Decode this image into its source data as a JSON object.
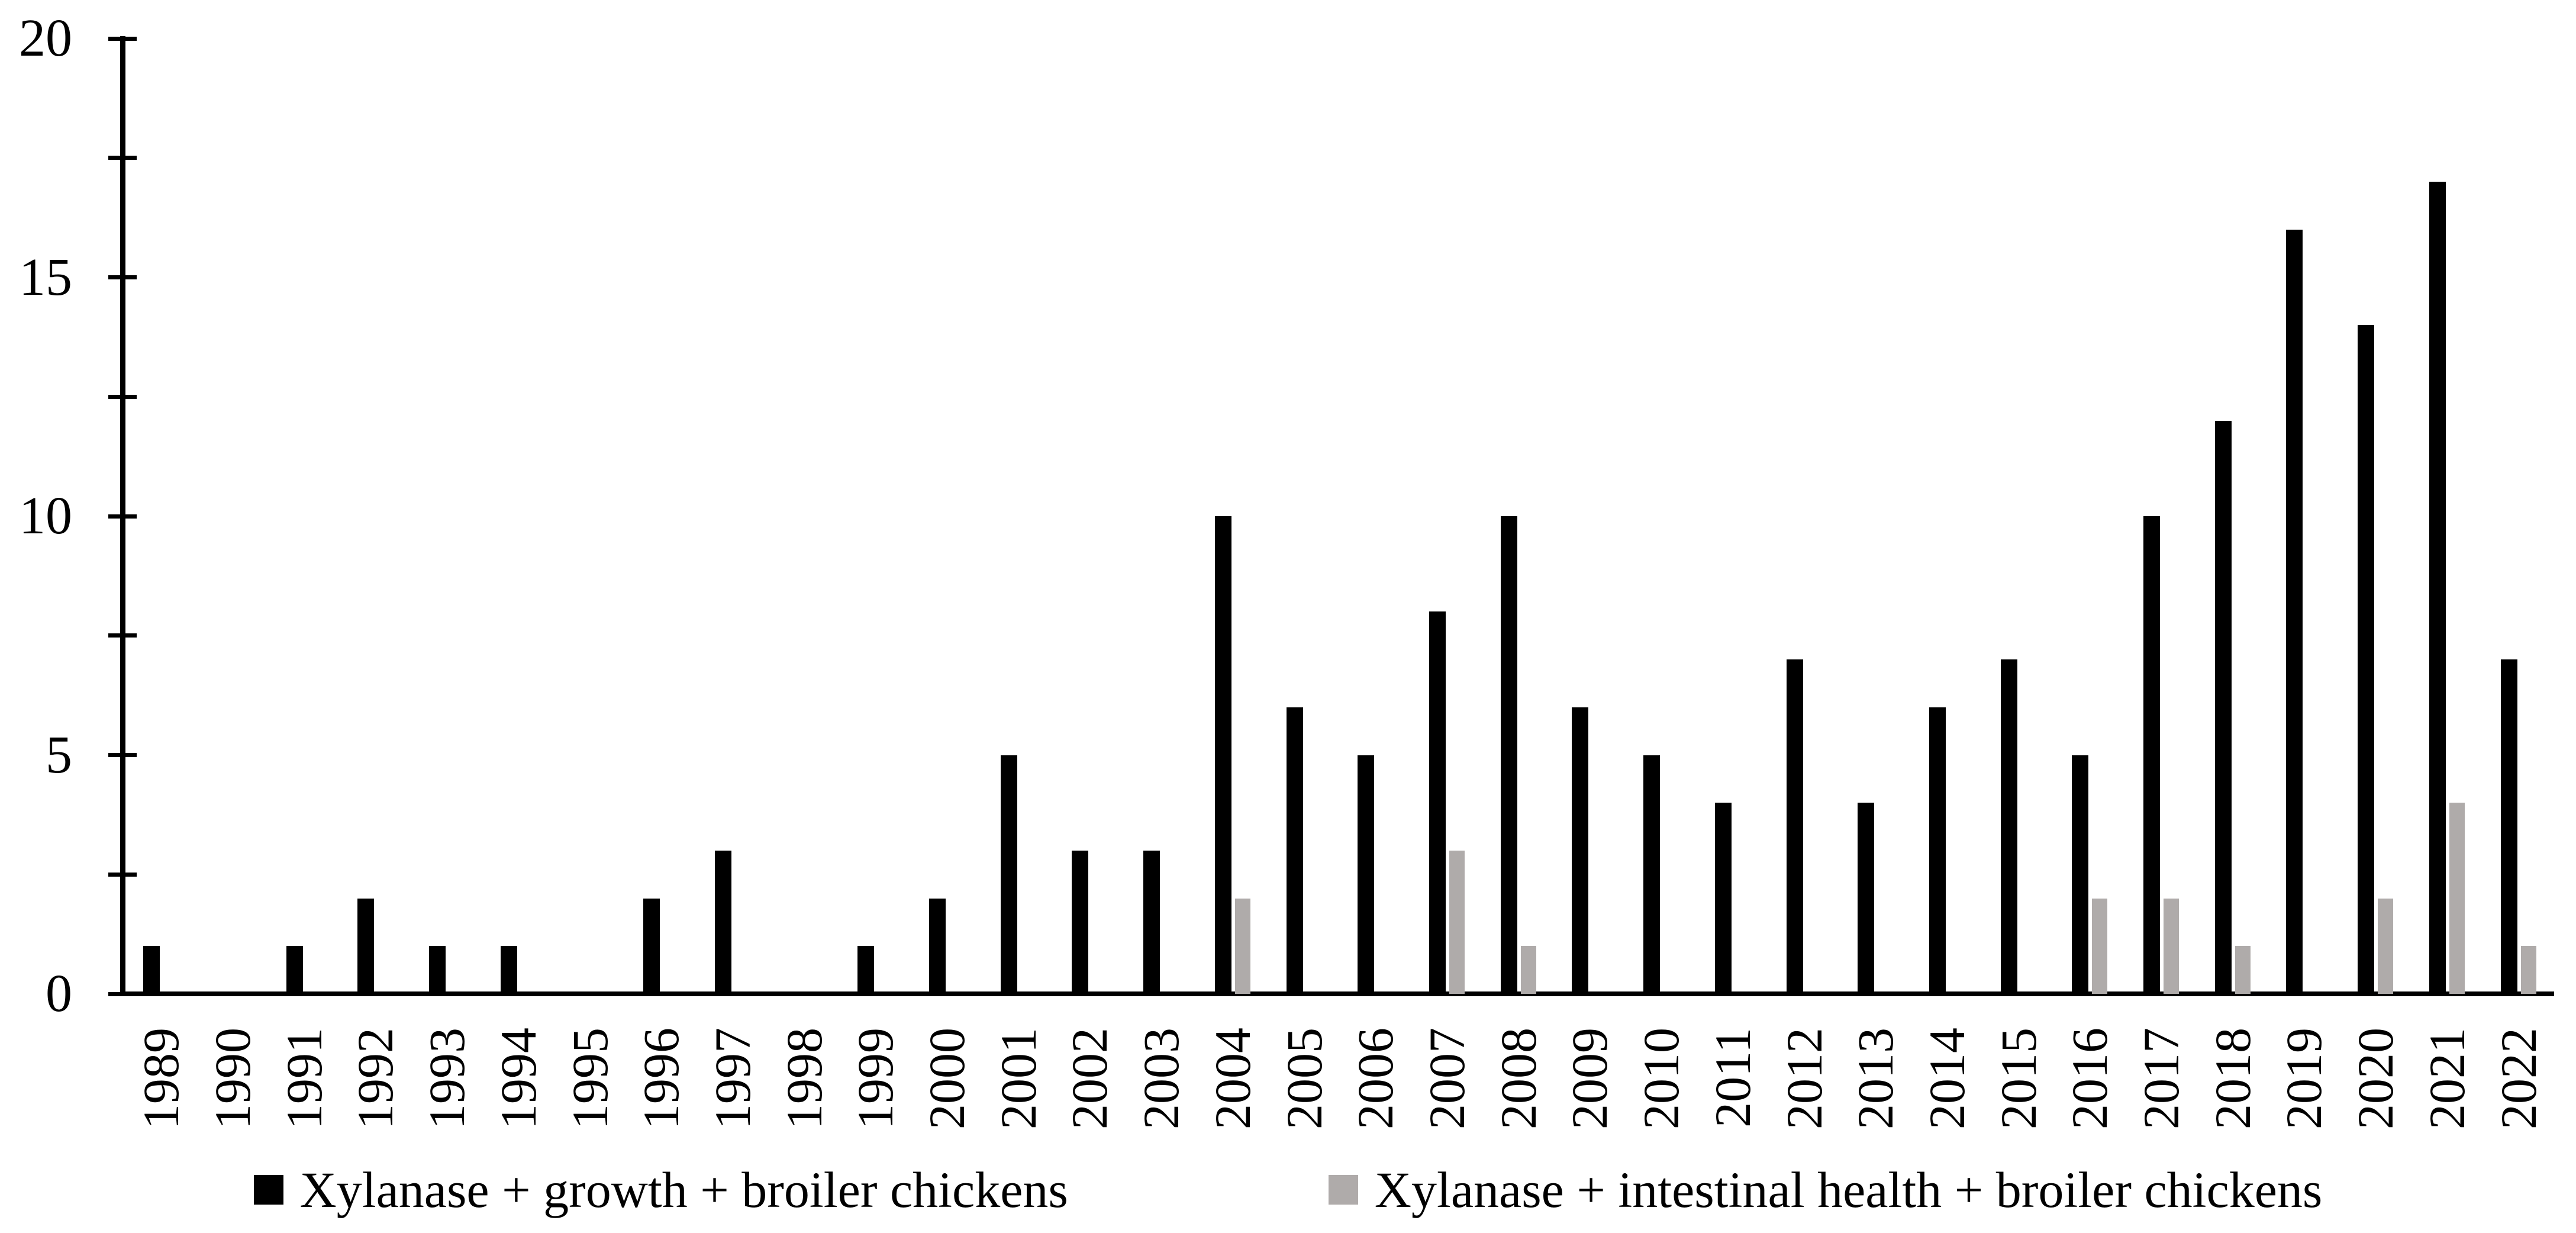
{
  "chart_data": {
    "type": "bar",
    "title": "",
    "xlabel": "",
    "ylabel": "",
    "categories": [
      "1989",
      "1990",
      "1991",
      "1992",
      "1993",
      "1994",
      "1995",
      "1996",
      "1997",
      "1998",
      "1999",
      "2000",
      "2001",
      "2002",
      "2003",
      "2004",
      "2005",
      "2006",
      "2007",
      "2008",
      "2009",
      "2010",
      "2011",
      "2012",
      "2013",
      "2014",
      "2015",
      "2016",
      "2017",
      "2018",
      "2019",
      "2020",
      "2021",
      "2022"
    ],
    "series": [
      {
        "name": "Xylanase + growth + broiler chickens",
        "color": "#000000",
        "values": [
          1,
          0,
          1,
          2,
          1,
          1,
          0,
          2,
          3,
          0,
          1,
          2,
          5,
          3,
          3,
          10,
          6,
          5,
          8,
          10,
          6,
          5,
          4,
          7,
          4,
          6,
          7,
          5,
          10,
          12,
          16,
          14,
          17,
          7
        ]
      },
      {
        "name": "Xylanase + intestinal health + broiler chickens",
        "color": "#afabaa",
        "values": [
          0,
          0,
          0,
          0,
          0,
          0,
          0,
          0,
          0,
          0,
          0,
          0,
          0,
          0,
          0,
          2,
          0,
          0,
          3,
          1,
          0,
          0,
          0,
          0,
          0,
          0,
          0,
          2,
          2,
          1,
          0,
          2,
          4,
          1
        ]
      }
    ],
    "ylim": [
      0,
      20
    ],
    "y_major_ticks": [
      0,
      5,
      10,
      15,
      20
    ],
    "y_major_tick_labels": [
      "0",
      "5",
      "10",
      "15",
      "20"
    ],
    "y_minor_tick_step": 2.5,
    "y_all_ticks": [
      0,
      2.5,
      5,
      7.5,
      10,
      12.5,
      15,
      17.5,
      20
    ],
    "grid": "off",
    "legend_position": "bottom"
  },
  "colors": {
    "axis": "#000000",
    "background": "#ffffff",
    "series_growth": "#000000",
    "series_intestinal_health": "#afabaa"
  }
}
